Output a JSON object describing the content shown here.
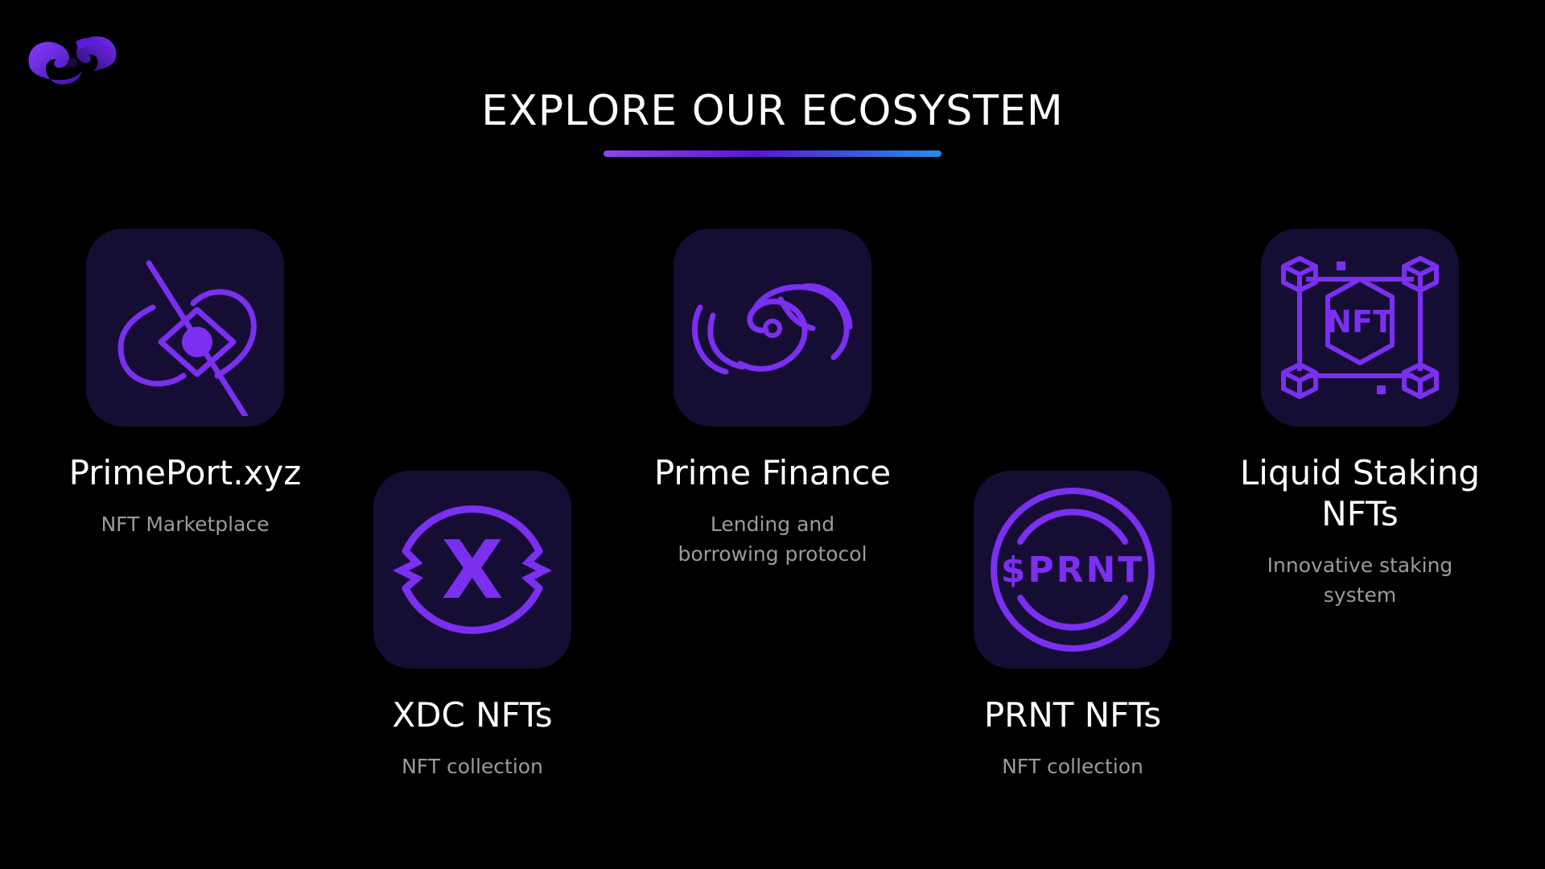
{
  "header": {
    "title": "EXPLORE OUR ECOSYSTEM"
  },
  "brand": {
    "logo_icon": "swirl-logo-icon"
  },
  "colors": {
    "background": "#000000",
    "tile": "#160d34",
    "accent": "#7b2ff0",
    "text": "#ffffff",
    "muted": "#9b9b9b"
  },
  "items": [
    {
      "name": "PrimePort.xyz",
      "desc_lines": [
        "NFT Marketplace"
      ],
      "icon": "primeport-icon"
    },
    {
      "name": "XDC NFTs",
      "desc_lines": [
        "NFT collection"
      ],
      "icon": "xdc-icon"
    },
    {
      "name": "Prime Finance",
      "desc_lines": [
        "Lending and",
        "borrowing protocol"
      ],
      "icon": "wave-swirl-icon"
    },
    {
      "name": "PRNT NFTs",
      "desc_lines": [
        "NFT collection"
      ],
      "icon": "prnt-coin-icon",
      "coin_text": "$PRNT"
    },
    {
      "name_lines": [
        "Liquid Staking",
        "NFTs"
      ],
      "desc_lines": [
        "Innovative staking",
        "system"
      ],
      "icon": "nft-network-icon",
      "badge_text": "NFT"
    }
  ]
}
